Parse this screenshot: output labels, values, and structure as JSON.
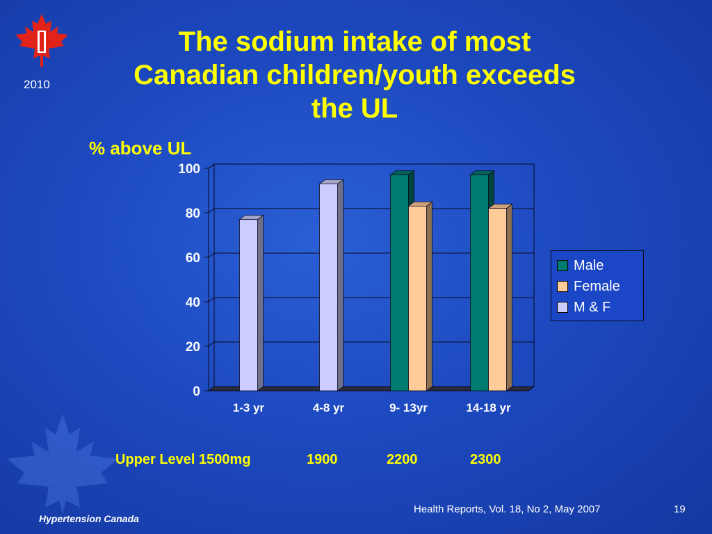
{
  "slide": {
    "title": "The sodium intake of most Canadian children/youth exceeds the UL",
    "subtitle": "% above UL",
    "year": "2010",
    "upper_levels": [
      "Upper Level 1500mg",
      "1900",
      "2200",
      "2300"
    ],
    "source": "Health Reports, Vol. 18, No 2,  May 2007",
    "page_number": "19",
    "organization": "Hypertension Canada",
    "icons": [
      "maple-leaf-logo-icon",
      "maple-leaf-watermark-icon"
    ]
  },
  "chart_data": {
    "type": "bar",
    "categories": [
      "1-3 yr",
      "4-8 yr",
      "9- 13yr",
      "14-18 yr"
    ],
    "series": [
      {
        "name": "Male",
        "values": [
          null,
          null,
          97,
          97
        ],
        "color": "#007b70"
      },
      {
        "name": "Female",
        "values": [
          null,
          null,
          83,
          82
        ],
        "color": "#ffcc99"
      },
      {
        "name": "M & F",
        "values": [
          77,
          93,
          null,
          null
        ],
        "color": "#ccccff"
      }
    ],
    "ylim": [
      0,
      100
    ],
    "yticks": [
      "0",
      "20",
      "40",
      "60",
      "80",
      "100"
    ],
    "grid": true,
    "legend_position": "right",
    "three_d": true
  },
  "colors": {
    "background": "#1d49c0",
    "title": "#ffff00",
    "text": "#ffffff",
    "logo_red": "#e2231a"
  }
}
